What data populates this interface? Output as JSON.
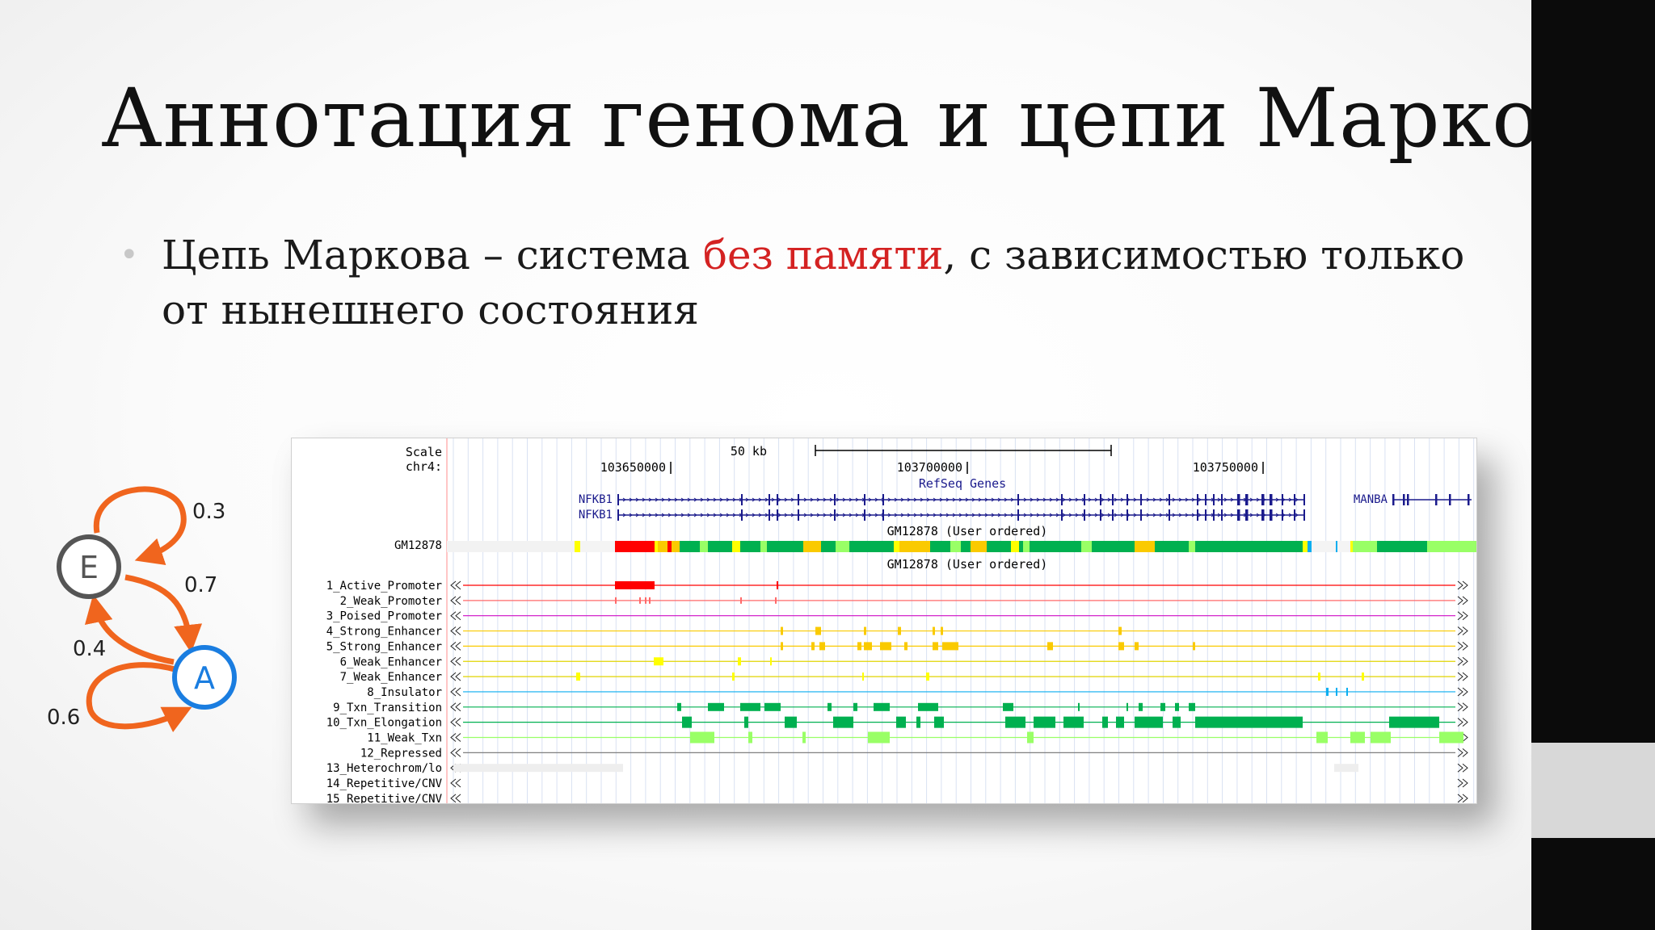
{
  "slide": {
    "title": "Аннотация генома и цепи Маркова",
    "bullet": {
      "part1": "Цепь Маркова – система ",
      "highlight": "без памяти",
      "part2": ", с зависимостью только от нынешнего состояния"
    }
  },
  "markov_chain": {
    "states": [
      {
        "label": "E",
        "color": "#555555"
      },
      {
        "label": "A",
        "color": "#1a7de0"
      }
    ],
    "transition_labels": {
      "e_to_e": "0.3",
      "e_to_a": "0.7",
      "a_to_e": "0.4",
      "a_to_a": "0.6"
    },
    "arrow_color": "#f0651e"
  },
  "genome_browser": {
    "scale_label": "Scale",
    "chrom_label": "chr4:",
    "scale_bar_text": "50 kb",
    "positions": [
      "103650000",
      "103700000",
      "103750000"
    ],
    "refseq_title": "RefSeq Genes",
    "genes": [
      {
        "name": "NFKB1",
        "color": "#1a1a8c"
      },
      {
        "name": "NFKB1",
        "color": "#1a1a8c"
      },
      {
        "name": "MANBA",
        "color": "#1a1a8c"
      }
    ],
    "segmentation_label": "GM12878",
    "segmentation_title": "GM12878 (User ordered)",
    "tracks_title": "GM12878 (User ordered)",
    "tracks": [
      {
        "label": "1_Active_Promoter",
        "color": "#ff0000"
      },
      {
        "label": "2_Weak_Promoter",
        "color": "#ff6969"
      },
      {
        "label": "3_Poised_Promoter",
        "color": "#cf0bc6"
      },
      {
        "label": "4_Strong_Enhancer",
        "color": "#faca00"
      },
      {
        "label": "5_Strong_Enhancer",
        "color": "#faca00"
      },
      {
        "label": "6_Weak_Enhancer",
        "color": "#ffff00"
      },
      {
        "label": "7_Weak_Enhancer",
        "color": "#ffff00"
      },
      {
        "label": "8_Insulator",
        "color": "#0aaef0"
      },
      {
        "label": "9_Txn_Transition",
        "color": "#00b050"
      },
      {
        "label": "10_Txn_Elongation",
        "color": "#00b050"
      },
      {
        "label": "11_Weak_Txn",
        "color": "#99ff66"
      },
      {
        "label": "12_Repressed",
        "color": "#7f7f7f"
      },
      {
        "label": "13_Heterochrom/lo",
        "color": "#f5f5f5"
      },
      {
        "label": "14_Repetitive/CNV",
        "color": "#f5f5f5"
      },
      {
        "label": "15_Repetitive/CNV",
        "color": "#f5f5f5"
      }
    ]
  }
}
